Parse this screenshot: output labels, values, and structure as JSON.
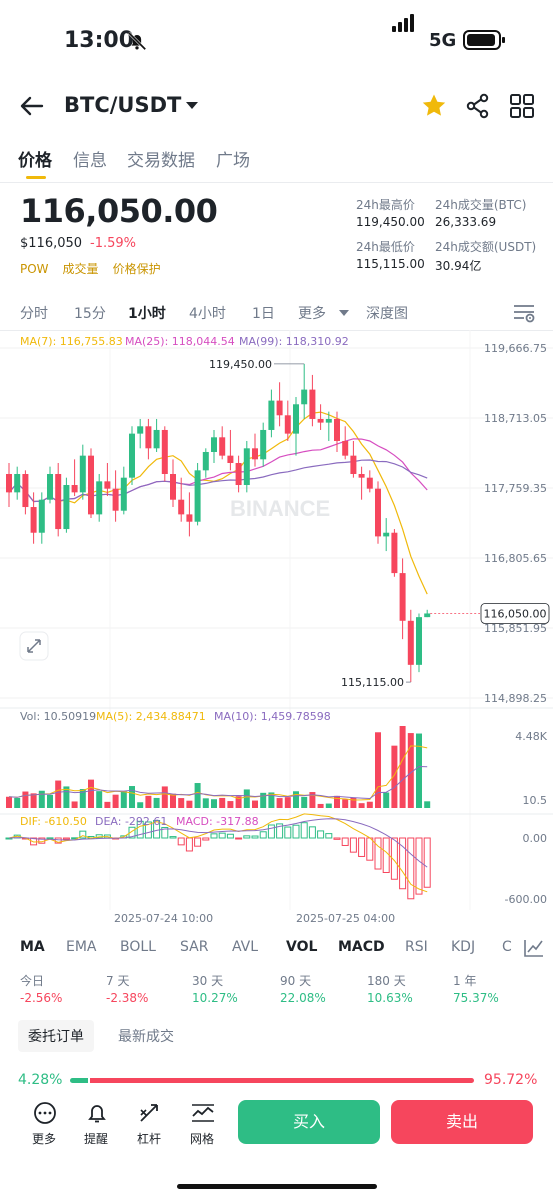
{
  "status_bar": {
    "time": "13:00",
    "network": "5G"
  },
  "header": {
    "pair": "BTC/USDT"
  },
  "tabs": [
    "价格",
    "信息",
    "交易数据",
    "广场"
  ],
  "ticker": {
    "price": "116,050.00",
    "fiat": "$116,050",
    "change": "-1.59%",
    "tags": [
      "POW",
      "成交量",
      "价格保护"
    ],
    "stats": [
      {
        "label": "24h最高价",
        "value": "119,450.00"
      },
      {
        "label": "24h成交量(BTC)",
        "value": "26,333.69"
      },
      {
        "label": "24h最低价",
        "value": "115,115.00"
      },
      {
        "label": "24h成交额(USDT)",
        "value": "30.94亿"
      }
    ]
  },
  "intervals": [
    "分时",
    "15分",
    "1小时",
    "4小时",
    "1日",
    "更多",
    "深度图"
  ],
  "chart_data": {
    "type": "candlestick",
    "ma_legend": [
      "MA(7): 116,755.83",
      "MA(25): 118,044.54",
      "MA(99): 118,310.92"
    ],
    "price_axis": [
      "119,666.75",
      "118,713.05",
      "117,759.35",
      "116,805.65",
      "115,851.95",
      "114,898.25"
    ],
    "ylim": [
      114898.25,
      119666.75
    ],
    "high_label": "119,450.00",
    "low_label": "115,115.00",
    "last_price": "116,050.00",
    "watermark": "BINANCE",
    "candles": [
      [
        117950,
        118100,
        117500,
        117700
      ],
      [
        117700,
        118050,
        117600,
        117950
      ],
      [
        117950,
        118000,
        117400,
        117500
      ],
      [
        117500,
        117700,
        117000,
        117150
      ],
      [
        117150,
        117700,
        117000,
        117600
      ],
      [
        117600,
        118050,
        117550,
        117950
      ],
      [
        117950,
        118100,
        117100,
        117200
      ],
      [
        117200,
        117900,
        117150,
        117800
      ],
      [
        117800,
        118150,
        117650,
        117700
      ],
      [
        117700,
        118350,
        117600,
        118200
      ],
      [
        118200,
        118300,
        117350,
        117400
      ],
      [
        117400,
        117950,
        117300,
        117850
      ],
      [
        117850,
        118100,
        117650,
        117750
      ],
      [
        117750,
        118000,
        117300,
        117450
      ],
      [
        117450,
        118050,
        117400,
        117900
      ],
      [
        117900,
        118600,
        117800,
        118500
      ],
      [
        118500,
        118700,
        118300,
        118600
      ],
      [
        118600,
        118700,
        118150,
        118300
      ],
      [
        118300,
        118700,
        118250,
        118550
      ],
      [
        118550,
        118600,
        117850,
        117950
      ],
      [
        117950,
        118150,
        117500,
        117600
      ],
      [
        117600,
        117900,
        117300,
        117400
      ],
      [
        117400,
        117700,
        117100,
        117300
      ],
      [
        117300,
        118100,
        117250,
        118000
      ],
      [
        118000,
        118300,
        117900,
        118250
      ],
      [
        118250,
        118550,
        118100,
        118450
      ],
      [
        118450,
        118600,
        118150,
        118200
      ],
      [
        118200,
        118550,
        118000,
        118100
      ],
      [
        118100,
        118200,
        117700,
        117800
      ],
      [
        117800,
        118400,
        117700,
        118300
      ],
      [
        118300,
        118500,
        118050,
        118150
      ],
      [
        118150,
        118650,
        118050,
        118550
      ],
      [
        118550,
        119100,
        118450,
        118950
      ],
      [
        118950,
        119200,
        118600,
        118750
      ],
      [
        118750,
        118950,
        118400,
        118500
      ],
      [
        118500,
        119000,
        118200,
        118900
      ],
      [
        118900,
        119450,
        118700,
        119100
      ],
      [
        119100,
        119300,
        118600,
        118700
      ],
      [
        118700,
        118900,
        118550,
        118650
      ],
      [
        118650,
        118800,
        118400,
        118700
      ],
      [
        118700,
        118800,
        118250,
        118400
      ],
      [
        118400,
        118600,
        118150,
        118200
      ],
      [
        118200,
        118400,
        117900,
        117950
      ],
      [
        117950,
        118050,
        117600,
        117900
      ],
      [
        117900,
        118000,
        117700,
        117750
      ],
      [
        117750,
        117850,
        117000,
        117100
      ],
      [
        117100,
        117350,
        116900,
        117150
      ],
      [
        117150,
        117200,
        116550,
        116600
      ],
      [
        116600,
        116800,
        115700,
        115950
      ],
      [
        115950,
        116100,
        115115,
        115350
      ],
      [
        115350,
        116050,
        115250,
        116000
      ],
      [
        116000,
        116100,
        116000,
        116050
      ]
    ],
    "volume_legend": [
      "Vol: 10.50919",
      "MA(5): 2,434.88471",
      "MA(10): 1,459.78598"
    ],
    "volume_axis": [
      "4.48K",
      "10.5"
    ],
    "macd_legend": [
      "DIF: -610.50",
      "DEA: -292.61",
      "MACD: -317.88"
    ],
    "macd_axis": [
      "0.00",
      "-600.00"
    ],
    "time_axis": [
      "2025-07-24 10:00",
      "2025-07-25 04:00"
    ],
    "colors": {
      "up": "#2ebd85",
      "down": "#f6465d",
      "ma7": "#f0b90b",
      "ma25": "#d64dc0",
      "ma99": "#8a6bbf"
    }
  },
  "indicator_tabs": [
    "MA",
    "EMA",
    "BOLL",
    "SAR",
    "AVL",
    "VOL",
    "MACD",
    "RSI",
    "KDJ",
    "C"
  ],
  "performance": [
    {
      "label": "今日",
      "value": "-2.56%"
    },
    {
      "label": "7 天",
      "value": "-2.38%"
    },
    {
      "label": "30 天",
      "value": "10.27%"
    },
    {
      "label": "90 天",
      "value": "22.08%"
    },
    {
      "label": "180 天",
      "value": "10.63%"
    },
    {
      "label": "1 年",
      "value": "75.37%"
    }
  ],
  "orderbook_tabs": [
    "委托订单",
    "最新成交"
  ],
  "ratio": {
    "buy": "4.28%",
    "sell": "95.72%",
    "buy_fraction": 0.0428
  },
  "bottom_bar": {
    "items": [
      "更多",
      "提醒",
      "杠杆",
      "网格"
    ],
    "buy_label": "买入",
    "sell_label": "卖出"
  }
}
